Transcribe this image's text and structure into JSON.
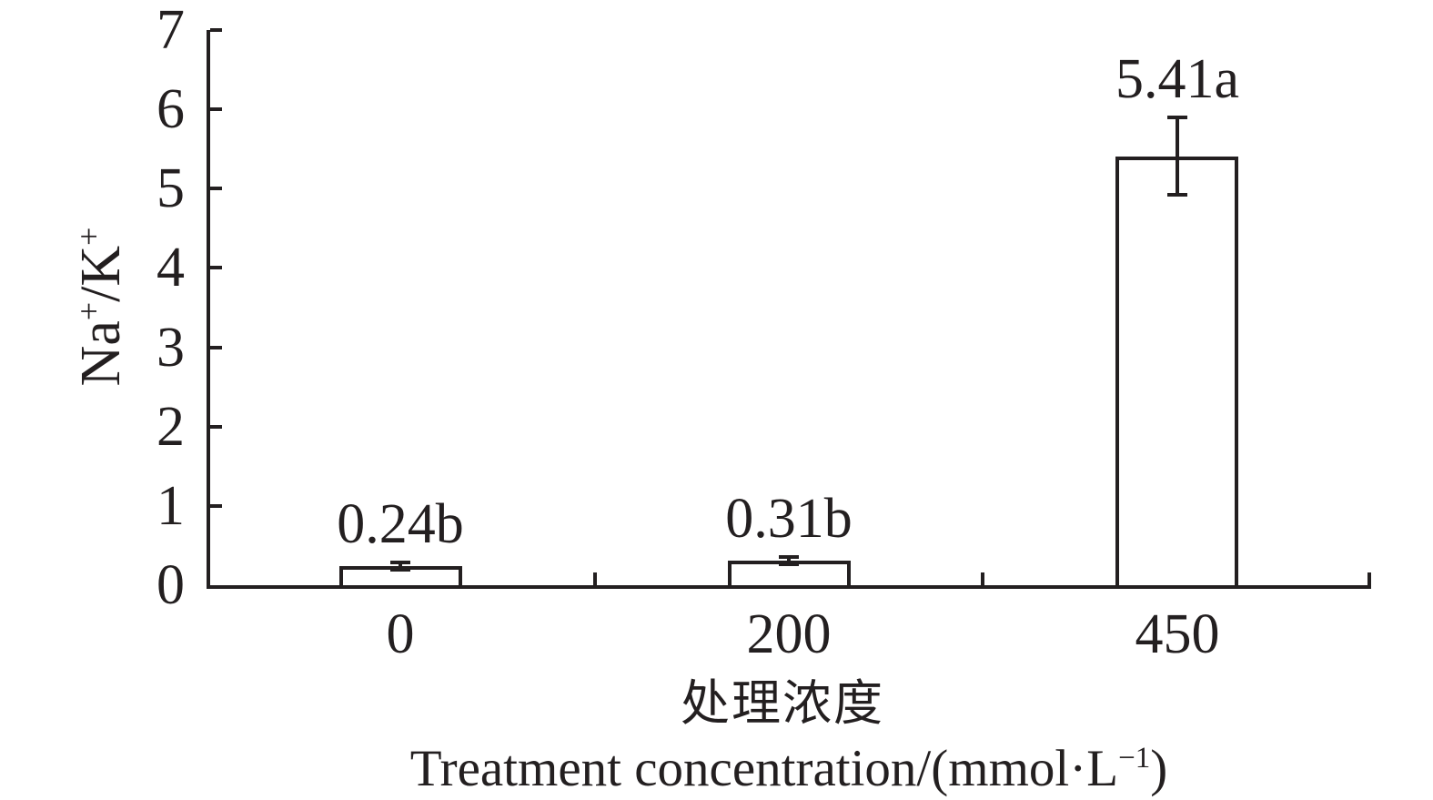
{
  "chart_data": {
    "type": "bar",
    "title": "",
    "categories": [
      "0",
      "200",
      "450"
    ],
    "values": [
      0.24,
      0.31,
      5.41
    ],
    "errors": [
      0.05,
      0.05,
      0.49
    ],
    "bar_labels": [
      "0.24b",
      "0.31b",
      "5.41a"
    ],
    "yticks": [
      0,
      1,
      2,
      3,
      4,
      5,
      6,
      7
    ],
    "ylim": [
      0,
      7
    ],
    "ylabel": {
      "text": "Na+/K+",
      "parts": [
        {
          "t": "Na"
        },
        {
          "t": "+",
          "sup": true
        },
        {
          "t": "/K"
        },
        {
          "t": "+",
          "sup": true
        }
      ]
    },
    "xlabel_line1": {
      "text": "处理浓度"
    },
    "xlabel_line2": {
      "text": "Treatment concentration/(mmol·L−1)",
      "parts": [
        {
          "t": "Treatment concentration/(mmol·L"
        },
        {
          "t": "−1",
          "sup": true
        },
        {
          "t": ")"
        }
      ]
    },
    "grid": false,
    "legend": null,
    "bar_fill": "#ffffff",
    "axis_color": "#231f20",
    "background": "#ffffff"
  }
}
